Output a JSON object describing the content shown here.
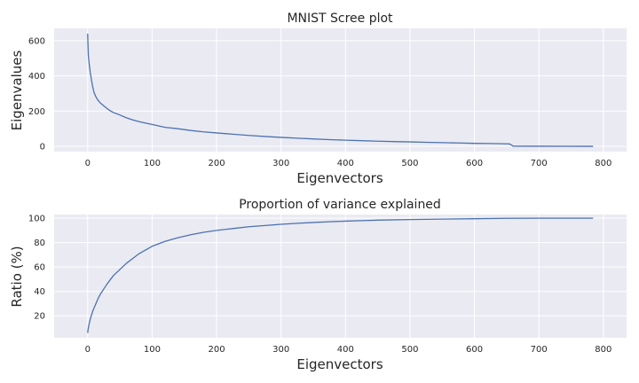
{
  "colors": {
    "background": "#eaeaf2",
    "grid": "#ffffff",
    "series": "#4c72b0"
  },
  "chart_data": [
    {
      "type": "line",
      "title": "MNIST Scree plot",
      "xlabel": "Eigenvectors",
      "ylabel": "Eigenvalues",
      "xlim": [
        -52,
        836
      ],
      "ylim": [
        -30,
        670
      ],
      "x_ticks": [
        0,
        100,
        200,
        300,
        400,
        500,
        600,
        700,
        800
      ],
      "y_ticks": [
        0,
        200,
        400,
        600
      ],
      "grid": true,
      "series": [
        {
          "color": "#4c72b0",
          "points": [
            [
              0,
              640
            ],
            [
              1,
              520
            ],
            [
              2,
              480
            ],
            [
              4,
              420
            ],
            [
              6,
              375
            ],
            [
              8,
              335
            ],
            [
              10,
              305
            ],
            [
              13,
              280
            ],
            [
              16,
              262
            ],
            [
              20,
              245
            ],
            [
              25,
              230
            ],
            [
              30,
              215
            ],
            [
              35,
              202
            ],
            [
              40,
              192
            ],
            [
              50,
              178
            ],
            [
              60,
              162
            ],
            [
              70,
              150
            ],
            [
              80,
              140
            ],
            [
              90,
              132
            ],
            [
              100,
              124
            ],
            [
              110,
              116
            ],
            [
              120,
              108
            ],
            [
              140,
              100
            ],
            [
              160,
              90
            ],
            [
              180,
              82
            ],
            [
              200,
              76
            ],
            [
              225,
              69
            ],
            [
              250,
              62
            ],
            [
              275,
              56
            ],
            [
              300,
              51
            ],
            [
              325,
              46
            ],
            [
              350,
              42
            ],
            [
              375,
              38
            ],
            [
              400,
              35
            ],
            [
              425,
              32
            ],
            [
              450,
              29
            ],
            [
              475,
              27
            ],
            [
              500,
              25
            ],
            [
              525,
              23
            ],
            [
              550,
              21
            ],
            [
              575,
              19
            ],
            [
              600,
              17
            ],
            [
              625,
              16
            ],
            [
              650,
              14
            ],
            [
              655,
              13
            ],
            [
              660,
              1
            ],
            [
              700,
              0.6
            ],
            [
              750,
              0.3
            ],
            [
              784,
              0
            ]
          ]
        }
      ]
    },
    {
      "type": "line",
      "title": "Proportion of variance explained",
      "xlabel": "Eigenvectors",
      "ylabel": "Ratio (%)",
      "xlim": [
        -52,
        836
      ],
      "ylim": [
        2,
        103
      ],
      "x_ticks": [
        0,
        100,
        200,
        300,
        400,
        500,
        600,
        700,
        800
      ],
      "y_ticks": [
        20,
        40,
        60,
        80,
        100
      ],
      "grid": true,
      "series": [
        {
          "color": "#4c72b0",
          "points": [
            [
              0,
              6
            ],
            [
              1,
              10
            ],
            [
              3,
              15
            ],
            [
              5,
              19
            ],
            [
              8,
              24
            ],
            [
              12,
              29
            ],
            [
              16,
              34
            ],
            [
              20,
              38
            ],
            [
              25,
              42
            ],
            [
              30,
              46
            ],
            [
              40,
              53
            ],
            [
              50,
              58
            ],
            [
              60,
              63
            ],
            [
              70,
              67
            ],
            [
              80,
              71
            ],
            [
              90,
              74
            ],
            [
              100,
              77
            ],
            [
              110,
              79
            ],
            [
              120,
              81
            ],
            [
              140,
              84
            ],
            [
              160,
              86.5
            ],
            [
              180,
              88.5
            ],
            [
              200,
              90
            ],
            [
              225,
              91.5
            ],
            [
              250,
              93
            ],
            [
              275,
              94
            ],
            [
              300,
              95
            ],
            [
              325,
              95.8
            ],
            [
              350,
              96.5
            ],
            [
              375,
              97.1
            ],
            [
              400,
              97.6
            ],
            [
              425,
              98
            ],
            [
              450,
              98.4
            ],
            [
              500,
              98.9
            ],
            [
              550,
              99.3
            ],
            [
              600,
              99.6
            ],
            [
              650,
              99.9
            ],
            [
              700,
              100
            ],
            [
              784,
              100
            ]
          ]
        }
      ]
    }
  ]
}
